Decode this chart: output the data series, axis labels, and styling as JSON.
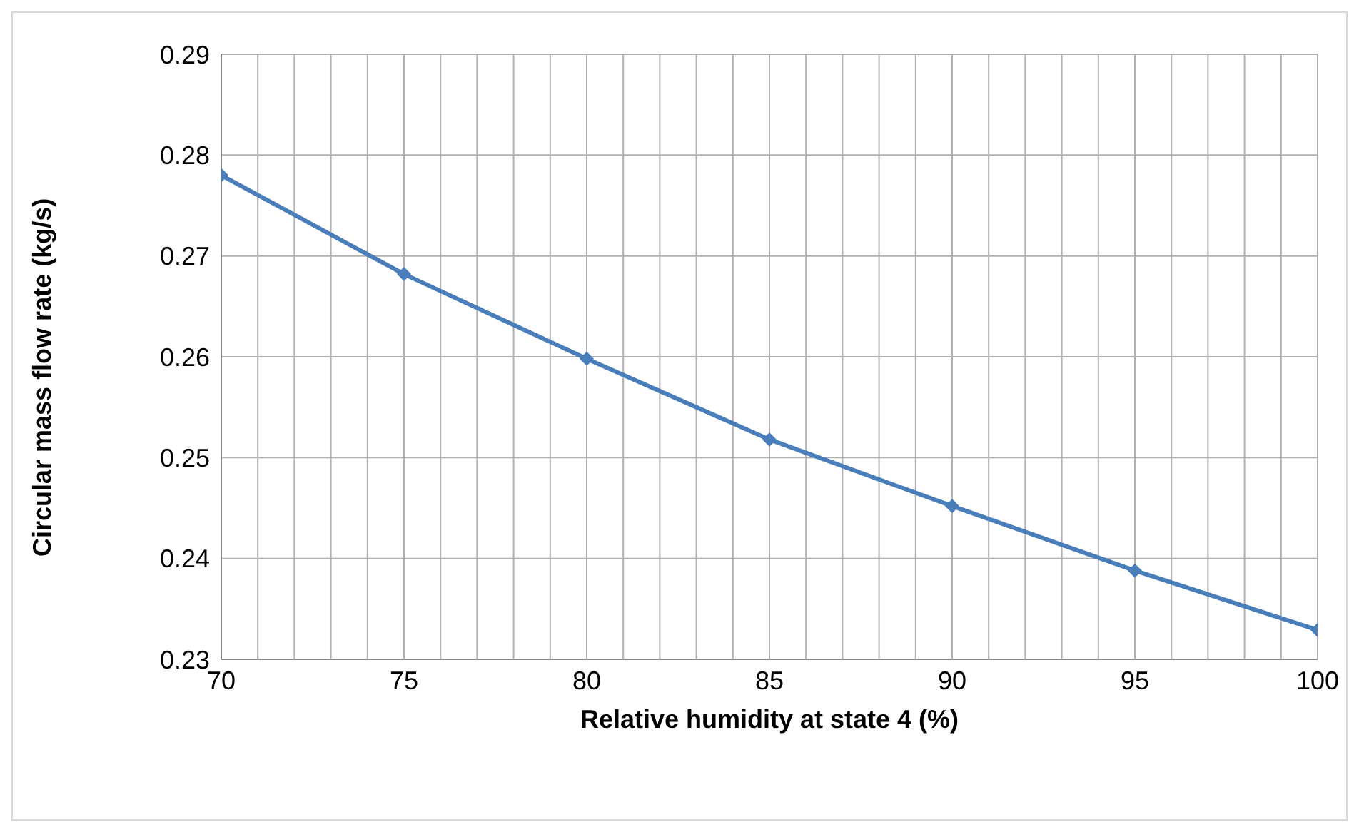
{
  "chart_data": {
    "type": "line",
    "xlabel": "Relative humidity at state 4 (%)",
    "ylabel": "Circular mass flow rate (kg/s)",
    "x": [
      70,
      75,
      80,
      85,
      90,
      95,
      100
    ],
    "series": [
      {
        "color": "#4a7ebb",
        "values": [
          0.278,
          0.2682,
          0.2598,
          0.2518,
          0.2452,
          0.2388,
          0.2329
        ]
      }
    ],
    "xlim": [
      70,
      100
    ],
    "xticks": [
      70,
      {
        "value": 71,
        "label": null
      },
      {
        "value": 72,
        "label": null
      },
      {
        "value": 73,
        "label": null
      },
      {
        "value": 74,
        "label": null
      },
      75,
      {
        "value": 76,
        "label": null
      },
      {
        "value": 77,
        "label": null
      },
      {
        "value": 78,
        "label": null
      },
      {
        "value": 79,
        "label": null
      },
      80,
      {
        "value": 81,
        "label": null
      },
      {
        "value": 82,
        "label": null
      },
      {
        "value": 83,
        "label": null
      },
      {
        "value": 84,
        "label": null
      },
      85,
      {
        "value": 86,
        "label": null
      },
      {
        "value": 87,
        "label": null
      },
      {
        "value": 88,
        "label": null
      },
      {
        "value": 89,
        "label": null
      },
      90,
      {
        "value": 91,
        "label": null
      },
      {
        "value": 92,
        "label": null
      },
      {
        "value": 93,
        "label": null
      },
      {
        "value": 94,
        "label": null
      },
      95,
      {
        "value": 96,
        "label": null
      },
      {
        "value": 97,
        "label": null
      },
      {
        "value": 98,
        "label": null
      },
      {
        "value": 99,
        "label": null
      },
      100
    ],
    "ylim": [
      0.23,
      0.29
    ],
    "yticks": [
      0.23,
      0.24,
      0.25,
      0.26,
      0.27,
      0.28,
      0.29
    ],
    "grid": true,
    "legend": false,
    "marker": "diamond",
    "line_style": "solid"
  }
}
